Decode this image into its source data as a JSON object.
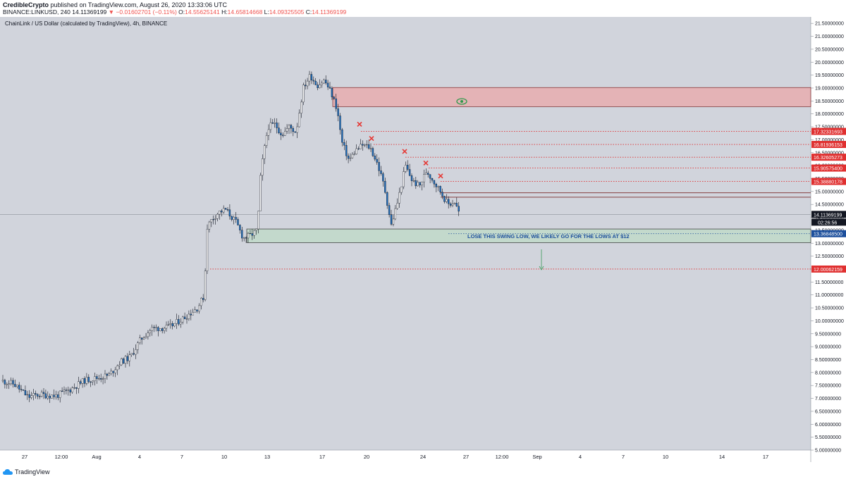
{
  "header": {
    "publisher": "CredibleCrypto",
    "published_text": "published on TradingView.com, August 26, 2020 13:33:06 UTC",
    "symbol": "BINANCE:LINKUSD, 240",
    "last": "14.11369199",
    "change": "▼ −0.01602701 (−0.11%)",
    "o_label": "O:",
    "o_value": "14.55625141",
    "h_label": "H:",
    "h_value": "14.65814668",
    "l_label": "L:",
    "l_value": "14.09325505",
    "c_label": "C:",
    "c_value": "14.11369199"
  },
  "footer": {
    "brand": "TradingView"
  },
  "colors": {
    "background": "#d1d4dc",
    "axis_background": "#ffffff",
    "candle": "#1e6fbf",
    "wick": "#131722",
    "resistance_zone": "#e4b3b6",
    "support_zone": "#c3d9cc",
    "red_level": "#e03030",
    "dark_label": "#131722",
    "blue_label": "#1c4f9c",
    "annotation_text": "#1c4f9c"
  },
  "chart_data": {
    "type": "candlestick",
    "title": "ChainLink / US Dollar (calculated by TradingView), 4h, BINANCE",
    "ylim": [
      5.0,
      21.75
    ],
    "y_ticks": [
      "21.50000000",
      "21.00000000",
      "20.50000000",
      "20.00000000",
      "19.50000000",
      "19.00000000",
      "18.50000000",
      "18.00000000",
      "17.50000000",
      "17.00000000",
      "16.50000000",
      "16.00000000",
      "15.50000000",
      "15.00000000",
      "14.50000000",
      "14.00000000",
      "13.50000000",
      "13.00000000",
      "12.50000000",
      "12.00000000",
      "11.50000000",
      "11.00000000",
      "10.50000000",
      "10.00000000",
      "9.50000000",
      "9.00000000",
      "8.50000000",
      "8.00000000",
      "7.50000000",
      "7.00000000",
      "6.50000000",
      "6.00000000",
      "5.50000000",
      "5.00000000"
    ],
    "x_ticks": [
      "27",
      "12:00",
      "Aug",
      "4",
      "7",
      "10",
      "13",
      "17",
      "20",
      "24",
      "27",
      "12:00",
      "Sep",
      "4",
      "7",
      "10",
      "14",
      "17"
    ],
    "price_path": [
      [
        0,
        7.7
      ],
      [
        20,
        7.55
      ],
      [
        40,
        7.05
      ],
      [
        55,
        7.15
      ],
      [
        80,
        7.1
      ],
      [
        100,
        7.35
      ],
      [
        120,
        7.7
      ],
      [
        140,
        7.8
      ],
      [
        155,
        7.9
      ],
      [
        170,
        8.4
      ],
      [
        185,
        8.6
      ],
      [
        200,
        9.3
      ],
      [
        215,
        9.7
      ],
      [
        240,
        9.75
      ],
      [
        260,
        10.1
      ],
      [
        280,
        10.5
      ],
      [
        290,
        11.0
      ],
      [
        293,
        13.6
      ],
      [
        300,
        13.9
      ],
      [
        310,
        14.2
      ],
      [
        320,
        14.3
      ],
      [
        335,
        13.8
      ],
      [
        345,
        13.2
      ],
      [
        355,
        13.3
      ],
      [
        365,
        13.5
      ],
      [
        370,
        15.8
      ],
      [
        380,
        17.5
      ],
      [
        390,
        17.6
      ],
      [
        400,
        17.2
      ],
      [
        410,
        17.5
      ],
      [
        420,
        17.3
      ],
      [
        430,
        19.0
      ],
      [
        440,
        19.5
      ],
      [
        450,
        19.1
      ],
      [
        460,
        19.3
      ],
      [
        470,
        18.8
      ],
      [
        478,
        18.2
      ],
      [
        485,
        16.9
      ],
      [
        495,
        16.2
      ],
      [
        505,
        16.6
      ],
      [
        515,
        16.8
      ],
      [
        525,
        16.7
      ],
      [
        535,
        16.1
      ],
      [
        545,
        15.2
      ],
      [
        555,
        13.7
      ],
      [
        565,
        14.7
      ],
      [
        575,
        16.0
      ],
      [
        585,
        15.4
      ],
      [
        595,
        15.2
      ],
      [
        605,
        15.8
      ],
      [
        615,
        15.4
      ],
      [
        625,
        15.0
      ],
      [
        635,
        14.5
      ],
      [
        645,
        14.6
      ],
      [
        652,
        14.11
      ]
    ],
    "last_price": "14.11369199",
    "countdown": "02:26:56",
    "swing_low_label": "13.36848500",
    "target_label": "12.00062159",
    "red_levels": [
      "17.32331693",
      "16.81936153",
      "16.32605273",
      "15.90575400",
      "15.38880178"
    ],
    "resistance_zone": [
      18.28,
      19.02
    ],
    "support_zone": [
      13.02,
      13.55
    ],
    "annotation": "LOSE THIS SWING LOW, WE LIKELY GO FOR THE LOWS AT $12"
  }
}
